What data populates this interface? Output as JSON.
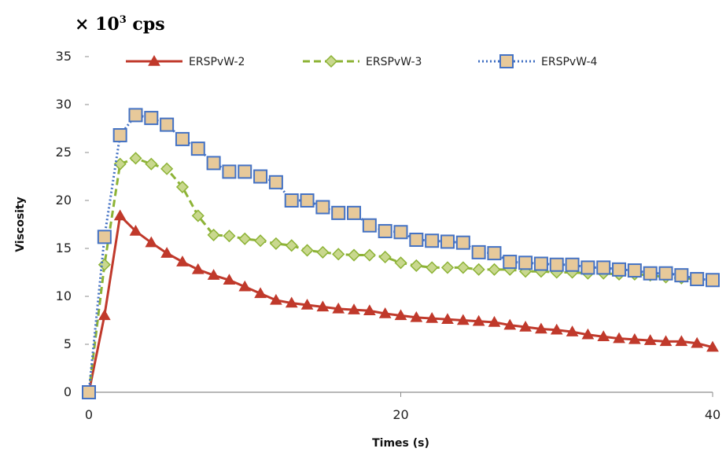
{
  "chart_data": {
    "type": "line",
    "unit_label": {
      "prefix": "× 10",
      "sup": "3",
      "suffix": " cps"
    },
    "xlabel": "Times (s)",
    "ylabel": "Viscosity",
    "xlim": [
      0,
      40
    ],
    "ylim": [
      0,
      35
    ],
    "xticks": [
      "0",
      "20",
      "40"
    ],
    "yticks": [
      "0",
      "5",
      "10",
      "15",
      "20",
      "25",
      "30",
      "35"
    ],
    "grid": false,
    "legend_position": "top",
    "series": [
      {
        "name": "ERSPvW-2",
        "color": "#c0392b",
        "line_style": "solid",
        "marker": "triangle",
        "x": [
          0,
          1,
          2,
          3,
          4,
          5,
          6,
          7,
          8,
          9,
          10,
          11,
          12,
          13,
          14,
          15,
          16,
          17,
          18,
          19,
          20,
          21,
          22,
          23,
          24,
          25,
          26,
          27,
          28,
          29,
          30,
          31,
          32,
          33,
          34,
          35,
          36,
          37,
          38,
          39,
          40
        ],
        "y": [
          0,
          8.0,
          18.4,
          16.8,
          15.6,
          14.5,
          13.6,
          12.8,
          12.2,
          11.7,
          11.0,
          10.3,
          9.6,
          9.3,
          9.1,
          8.9,
          8.7,
          8.6,
          8.5,
          8.2,
          8.0,
          7.8,
          7.7,
          7.6,
          7.5,
          7.4,
          7.3,
          7.0,
          6.8,
          6.6,
          6.5,
          6.3,
          6.0,
          5.8,
          5.6,
          5.5,
          5.4,
          5.3,
          5.3,
          5.1,
          4.7
        ]
      },
      {
        "name": "ERSPvW-3",
        "color": "#8db336",
        "line_style": "dashed",
        "marker": "diamond",
        "x": [
          0,
          1,
          2,
          3,
          4,
          5,
          6,
          7,
          8,
          9,
          10,
          11,
          12,
          13,
          14,
          15,
          16,
          17,
          18,
          19,
          20,
          21,
          22,
          23,
          24,
          25,
          26,
          27,
          28,
          29,
          30,
          31,
          32,
          33,
          34,
          35,
          36,
          37,
          38,
          39,
          40
        ],
        "y": [
          0,
          13.3,
          23.8,
          24.4,
          23.8,
          23.3,
          21.4,
          18.4,
          16.4,
          16.3,
          16.0,
          15.8,
          15.5,
          15.3,
          14.8,
          14.6,
          14.4,
          14.3,
          14.3,
          14.1,
          13.5,
          13.2,
          13.0,
          13.0,
          13.0,
          12.8,
          12.8,
          12.8,
          12.6,
          12.6,
          12.5,
          12.5,
          12.4,
          12.4,
          12.3,
          12.3,
          12.2,
          12.0,
          11.9,
          11.8,
          11.7
        ]
      },
      {
        "name": "ERSPvW-4",
        "color": "#4472c4",
        "line_style": "dotted",
        "marker": "square",
        "x": [
          0,
          1,
          2,
          3,
          4,
          5,
          6,
          7,
          8,
          9,
          10,
          11,
          12,
          13,
          14,
          15,
          16,
          17,
          18,
          19,
          20,
          21,
          22,
          23,
          24,
          25,
          26,
          27,
          28,
          29,
          30,
          31,
          32,
          33,
          34,
          35,
          36,
          37,
          38,
          39,
          40
        ],
        "y": [
          0,
          16.2,
          26.8,
          28.9,
          28.6,
          27.9,
          26.4,
          25.4,
          23.9,
          23.0,
          23.0,
          22.5,
          21.9,
          20.0,
          20.0,
          19.3,
          18.7,
          18.7,
          17.4,
          16.8,
          16.7,
          15.9,
          15.8,
          15.7,
          15.6,
          14.6,
          14.5,
          13.6,
          13.5,
          13.4,
          13.3,
          13.3,
          13.0,
          13.0,
          12.8,
          12.7,
          12.4,
          12.4,
          12.2,
          11.8,
          11.7
        ]
      }
    ]
  }
}
